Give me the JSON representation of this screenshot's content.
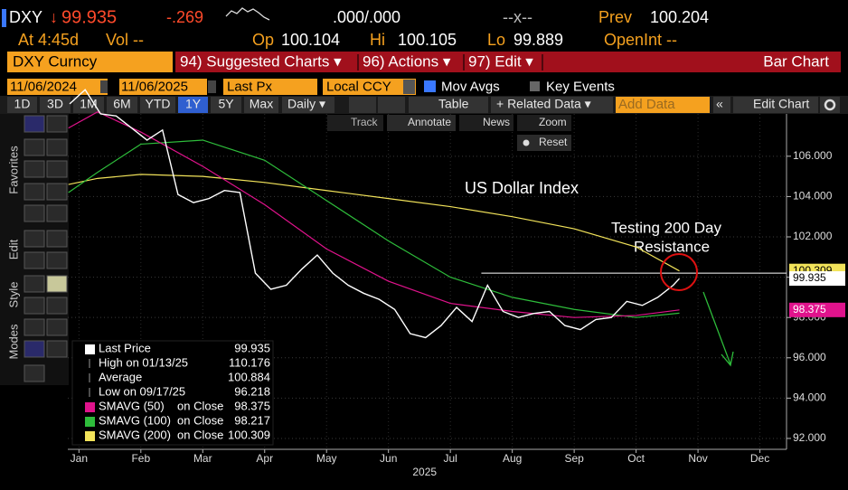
{
  "header": {
    "ticker": "DXY",
    "arrow": "↓",
    "last": "99.935",
    "change": "-.269",
    "bidask": ".000/.000",
    "size": "--x--",
    "prev_label": "Prev",
    "prev": "100.204",
    "time": "At 4:45d",
    "vol": "Vol --",
    "open_label": "Op",
    "open": "100.104",
    "high_label": "Hi",
    "high": "100.105",
    "low_label": "Lo",
    "low": "99.889",
    "open_int": "OpenInt --"
  },
  "menu": {
    "security": "DXY Curncy",
    "items": [
      "94) Suggested Charts ▾",
      "96) Actions ▾",
      "97) Edit ▾"
    ],
    "chart_type": "Bar Chart"
  },
  "settings": {
    "start": "11/06/2024",
    "end": "11/06/2025",
    "field": "Last Px",
    "currency": "Local CCY",
    "mov_avgs": "Mov Avgs",
    "key_events": "Key Events"
  },
  "toolbar": {
    "ranges": [
      "1D",
      "3D",
      "1M",
      "6M",
      "YTD",
      "1Y",
      "5Y",
      "Max"
    ],
    "period": "Daily ▾",
    "table": "Table",
    "related": "+ Related Data ▾",
    "add_data": "Add Data",
    "edit_chart": "Edit Chart"
  },
  "chart_tools": [
    "Track",
    "Annotate",
    "News",
    "Zoom",
    "Reset"
  ],
  "side_tabs": [
    "Favorites",
    "Edit",
    "Style",
    "Modes"
  ],
  "chart_data": {
    "type": "line",
    "title": "US Dollar Index",
    "annotations": [
      "Testing 200 Day",
      "Resistance"
    ],
    "x_title": "2025",
    "xlim": [
      0.32,
      11.93
    ],
    "xticks": [
      {
        "value": 0.5,
        "label": "Jan"
      },
      {
        "value": 1.5,
        "label": "Feb"
      },
      {
        "value": 2.5,
        "label": "Mar"
      },
      {
        "value": 3.5,
        "label": "Apr"
      },
      {
        "value": 4.5,
        "label": "May"
      },
      {
        "value": 5.5,
        "label": "Jun"
      },
      {
        "value": 6.5,
        "label": "Jul"
      },
      {
        "value": 7.5,
        "label": "Aug"
      },
      {
        "value": 8.5,
        "label": "Sep"
      },
      {
        "value": 9.5,
        "label": "Oct"
      },
      {
        "value": 10.5,
        "label": "Nov"
      },
      {
        "value": 11.5,
        "label": "Dec"
      }
    ],
    "ylim": [
      91.46,
      108.1
    ],
    "yticks": [
      {
        "value": 92,
        "label": "92.000"
      },
      {
        "value": 94,
        "label": "94.000"
      },
      {
        "value": 96,
        "label": "96.000"
      },
      {
        "value": 98,
        "label": "98.000"
      },
      {
        "value": 100,
        "label": "100.000"
      },
      {
        "value": 102,
        "label": "102.000"
      },
      {
        "value": 104,
        "label": "104.000"
      },
      {
        "value": 106,
        "label": "106.000"
      }
    ],
    "grid": true,
    "resistance": {
      "value": 100.2,
      "from": 7.0
    },
    "series": [
      {
        "name": "Last Price",
        "color": "#ffffff",
        "x": [
          0.35,
          0.6,
          0.85,
          1.1,
          1.35,
          1.6,
          1.85,
          2.1,
          2.35,
          2.6,
          2.85,
          3.1,
          3.35,
          3.6,
          3.85,
          4.1,
          4.35,
          4.6,
          4.85,
          5.1,
          5.35,
          5.6,
          5.85,
          6.1,
          6.35,
          6.6,
          6.85,
          7.1,
          7.35,
          7.6,
          7.85,
          8.1,
          8.35,
          8.6,
          8.85,
          9.1,
          9.35,
          9.6,
          9.85,
          10.1,
          10.2
        ],
        "values": [
          108.6,
          109.3,
          108.1,
          108.0,
          107.4,
          106.8,
          107.3,
          104.1,
          103.7,
          103.9,
          104.3,
          104.2,
          100.2,
          99.4,
          99.6,
          100.4,
          101.1,
          100.2,
          99.6,
          99.2,
          98.9,
          98.4,
          97.2,
          97.0,
          97.6,
          98.5,
          97.8,
          99.6,
          98.3,
          98.0,
          98.2,
          98.3,
          97.6,
          97.4,
          97.9,
          98.0,
          98.8,
          98.6,
          99.0,
          99.6,
          99.935
        ]
      },
      {
        "name": "SMAVG (50)",
        "field_label": "on Close",
        "color": "#e0138c",
        "x": [
          0.33,
          0.8,
          1.5,
          2.5,
          3.5,
          4.5,
          5.5,
          6.5,
          7.5,
          8.5,
          9.5,
          10.2
        ],
        "values": [
          107.4,
          108.2,
          107.2,
          105.5,
          103.6,
          101.4,
          99.8,
          98.7,
          98.3,
          98.0,
          98.1,
          98.375
        ]
      },
      {
        "name": "SMAVG (100)",
        "field_label": "on Close",
        "color": "#2ebd3b",
        "x": [
          0.33,
          0.8,
          1.5,
          2.5,
          3.5,
          4.5,
          5.5,
          6.5,
          7.5,
          8.5,
          9.5,
          10.2
        ],
        "values": [
          104.2,
          105.2,
          106.6,
          106.8,
          105.8,
          103.8,
          101.8,
          100.0,
          99.0,
          98.4,
          98.0,
          98.217
        ]
      },
      {
        "name": "SMAVG (200)",
        "field_label": "on Close",
        "color": "#f2e35a",
        "x": [
          0.33,
          0.8,
          1.5,
          2.5,
          3.5,
          4.5,
          5.5,
          6.5,
          7.5,
          8.5,
          9.5,
          10.2
        ],
        "values": [
          104.6,
          104.9,
          105.1,
          105.0,
          104.7,
          104.3,
          103.9,
          103.5,
          103.0,
          102.4,
          101.5,
          100.309
        ]
      }
    ],
    "stats": [
      {
        "label": "High on 01/13/25",
        "value": 110.176
      },
      {
        "label": "Average",
        "value": 100.884
      },
      {
        "label": "Low on 09/17/25",
        "value": 96.218
      }
    ]
  }
}
